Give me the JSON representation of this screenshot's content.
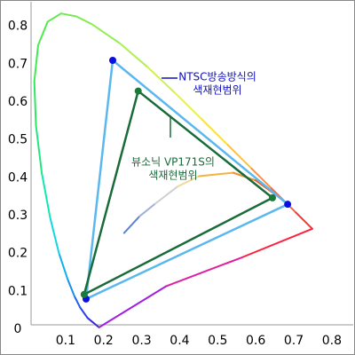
{
  "chart_data": {
    "type": "line",
    "xlim": [
      0,
      0.84
    ],
    "ylim": [
      0,
      0.86
    ],
    "xticks": [
      0.1,
      0.2,
      0.3,
      0.4,
      0.5,
      0.6,
      0.7,
      0.8
    ],
    "yticks": [
      0,
      0.1,
      0.2,
      0.3,
      0.4,
      0.5,
      0.6,
      0.7,
      0.8
    ],
    "series": [
      {
        "closed": true,
        "x": [
          0.1741,
          0.144,
          0.1241,
          0.1096,
          0.0913,
          0.0687,
          0.0454,
          0.0235,
          0.0082,
          0.0039,
          0.0139,
          0.0389,
          0.0743,
          0.1142,
          0.1547,
          0.2296,
          0.3016,
          0.3731,
          0.4441,
          0.5125,
          0.5752,
          0.627,
          0.6915,
          0.7347,
          0.55,
          0.35
        ],
        "y": [
          0.005,
          0.0297,
          0.0578,
          0.0868,
          0.1327,
          0.2007,
          0.295,
          0.4127,
          0.5384,
          0.6548,
          0.7502,
          0.812,
          0.8338,
          0.8262,
          0.8059,
          0.7543,
          0.6923,
          0.6245,
          0.5547,
          0.4866,
          0.4242,
          0.3725,
          0.3083,
          0.2653,
          0.1898,
          0.1134
        ],
        "colors": [
          "#3a2ad8",
          "#2a3cf0",
          "#2060f0",
          "#1890f0",
          "#10b0f0",
          "#10d8e0",
          "#10e8b0",
          "#20e880",
          "#30e860",
          "#40ea50",
          "#50ea50",
          "#60ea50",
          "#70ea50",
          "#80ec50",
          "#90ee50",
          "#b0f050",
          "#d0f050",
          "#e8f050",
          "#f8e040",
          "#ffc040",
          "#ff9040",
          "#ff6040",
          "#ff3030",
          "#ff2040",
          "#e020a0",
          "#a020e0"
        ]
      },
      {
        "x": [
          0.2399,
          0.2807,
          0.3221,
          0.3805,
          0.4369,
          0.5267,
          0.5857,
          0.6528
        ],
        "y": [
          0.2542,
          0.2984,
          0.3318,
          0.3768,
          0.4041,
          0.4133,
          0.3931,
          0.3444
        ],
        "colors": [
          "#6080d0",
          "#a0b0d8",
          "#d0d0d0",
          "#f0d8a0",
          "#f8b040",
          "#f09030",
          "#f06020",
          "#e83030"
        ]
      },
      {
        "closed": true,
        "color": "#5ab8ee",
        "marker_color": "#0a10e0",
        "x": [
          0.21,
          0.67,
          0.14
        ],
        "y": [
          0.71,
          0.33,
          0.08
        ]
      },
      {
        "closed": true,
        "color": "#1a6b3a",
        "marker_color": "#1a7a3a",
        "x": [
          0.277,
          0.63,
          0.135
        ],
        "y": [
          0.629,
          0.347,
          0.092
        ]
      }
    ],
    "annotations": [
      {
        "lines": [
          "NTSC방송방식의",
          "색재현범위"
        ],
        "color": "#1010c0"
      },
      {
        "lines": [
          "뷰소닉 VP171S의",
          "색재현범위"
        ],
        "color": "#1a6b3a"
      }
    ]
  }
}
